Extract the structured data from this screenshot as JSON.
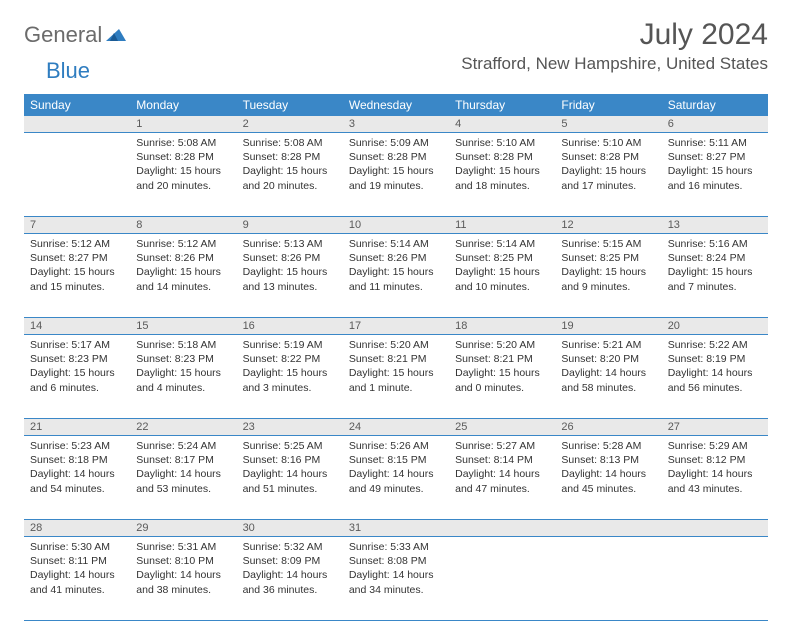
{
  "logo": {
    "general": "General",
    "blue": "Blue"
  },
  "title": "July 2024",
  "location": "Strafford, New Hampshire, United States",
  "day_headers": [
    "Sunday",
    "Monday",
    "Tuesday",
    "Wednesday",
    "Thursday",
    "Friday",
    "Saturday"
  ],
  "colors": {
    "header_bg": "#3a87c7",
    "header_text": "#ffffff",
    "row_border": "#3a87c7",
    "daynum_bg": "#e9e9e9",
    "daynum_text": "#5a5a5a",
    "body_text": "#333333",
    "title_text": "#555555",
    "logo_gray": "#6b6b6b",
    "logo_blue": "#2f7dc0"
  },
  "weeks": [
    [
      null,
      {
        "n": "1",
        "sr": "Sunrise: 5:08 AM",
        "ss": "Sunset: 8:28 PM",
        "dl1": "Daylight: 15 hours",
        "dl2": "and 20 minutes."
      },
      {
        "n": "2",
        "sr": "Sunrise: 5:08 AM",
        "ss": "Sunset: 8:28 PM",
        "dl1": "Daylight: 15 hours",
        "dl2": "and 20 minutes."
      },
      {
        "n": "3",
        "sr": "Sunrise: 5:09 AM",
        "ss": "Sunset: 8:28 PM",
        "dl1": "Daylight: 15 hours",
        "dl2": "and 19 minutes."
      },
      {
        "n": "4",
        "sr": "Sunrise: 5:10 AM",
        "ss": "Sunset: 8:28 PM",
        "dl1": "Daylight: 15 hours",
        "dl2": "and 18 minutes."
      },
      {
        "n": "5",
        "sr": "Sunrise: 5:10 AM",
        "ss": "Sunset: 8:28 PM",
        "dl1": "Daylight: 15 hours",
        "dl2": "and 17 minutes."
      },
      {
        "n": "6",
        "sr": "Sunrise: 5:11 AM",
        "ss": "Sunset: 8:27 PM",
        "dl1": "Daylight: 15 hours",
        "dl2": "and 16 minutes."
      }
    ],
    [
      {
        "n": "7",
        "sr": "Sunrise: 5:12 AM",
        "ss": "Sunset: 8:27 PM",
        "dl1": "Daylight: 15 hours",
        "dl2": "and 15 minutes."
      },
      {
        "n": "8",
        "sr": "Sunrise: 5:12 AM",
        "ss": "Sunset: 8:26 PM",
        "dl1": "Daylight: 15 hours",
        "dl2": "and 14 minutes."
      },
      {
        "n": "9",
        "sr": "Sunrise: 5:13 AM",
        "ss": "Sunset: 8:26 PM",
        "dl1": "Daylight: 15 hours",
        "dl2": "and 13 minutes."
      },
      {
        "n": "10",
        "sr": "Sunrise: 5:14 AM",
        "ss": "Sunset: 8:26 PM",
        "dl1": "Daylight: 15 hours",
        "dl2": "and 11 minutes."
      },
      {
        "n": "11",
        "sr": "Sunrise: 5:14 AM",
        "ss": "Sunset: 8:25 PM",
        "dl1": "Daylight: 15 hours",
        "dl2": "and 10 minutes."
      },
      {
        "n": "12",
        "sr": "Sunrise: 5:15 AM",
        "ss": "Sunset: 8:25 PM",
        "dl1": "Daylight: 15 hours",
        "dl2": "and 9 minutes."
      },
      {
        "n": "13",
        "sr": "Sunrise: 5:16 AM",
        "ss": "Sunset: 8:24 PM",
        "dl1": "Daylight: 15 hours",
        "dl2": "and 7 minutes."
      }
    ],
    [
      {
        "n": "14",
        "sr": "Sunrise: 5:17 AM",
        "ss": "Sunset: 8:23 PM",
        "dl1": "Daylight: 15 hours",
        "dl2": "and 6 minutes."
      },
      {
        "n": "15",
        "sr": "Sunrise: 5:18 AM",
        "ss": "Sunset: 8:23 PM",
        "dl1": "Daylight: 15 hours",
        "dl2": "and 4 minutes."
      },
      {
        "n": "16",
        "sr": "Sunrise: 5:19 AM",
        "ss": "Sunset: 8:22 PM",
        "dl1": "Daylight: 15 hours",
        "dl2": "and 3 minutes."
      },
      {
        "n": "17",
        "sr": "Sunrise: 5:20 AM",
        "ss": "Sunset: 8:21 PM",
        "dl1": "Daylight: 15 hours",
        "dl2": "and 1 minute."
      },
      {
        "n": "18",
        "sr": "Sunrise: 5:20 AM",
        "ss": "Sunset: 8:21 PM",
        "dl1": "Daylight: 15 hours",
        "dl2": "and 0 minutes."
      },
      {
        "n": "19",
        "sr": "Sunrise: 5:21 AM",
        "ss": "Sunset: 8:20 PM",
        "dl1": "Daylight: 14 hours",
        "dl2": "and 58 minutes."
      },
      {
        "n": "20",
        "sr": "Sunrise: 5:22 AM",
        "ss": "Sunset: 8:19 PM",
        "dl1": "Daylight: 14 hours",
        "dl2": "and 56 minutes."
      }
    ],
    [
      {
        "n": "21",
        "sr": "Sunrise: 5:23 AM",
        "ss": "Sunset: 8:18 PM",
        "dl1": "Daylight: 14 hours",
        "dl2": "and 54 minutes."
      },
      {
        "n": "22",
        "sr": "Sunrise: 5:24 AM",
        "ss": "Sunset: 8:17 PM",
        "dl1": "Daylight: 14 hours",
        "dl2": "and 53 minutes."
      },
      {
        "n": "23",
        "sr": "Sunrise: 5:25 AM",
        "ss": "Sunset: 8:16 PM",
        "dl1": "Daylight: 14 hours",
        "dl2": "and 51 minutes."
      },
      {
        "n": "24",
        "sr": "Sunrise: 5:26 AM",
        "ss": "Sunset: 8:15 PM",
        "dl1": "Daylight: 14 hours",
        "dl2": "and 49 minutes."
      },
      {
        "n": "25",
        "sr": "Sunrise: 5:27 AM",
        "ss": "Sunset: 8:14 PM",
        "dl1": "Daylight: 14 hours",
        "dl2": "and 47 minutes."
      },
      {
        "n": "26",
        "sr": "Sunrise: 5:28 AM",
        "ss": "Sunset: 8:13 PM",
        "dl1": "Daylight: 14 hours",
        "dl2": "and 45 minutes."
      },
      {
        "n": "27",
        "sr": "Sunrise: 5:29 AM",
        "ss": "Sunset: 8:12 PM",
        "dl1": "Daylight: 14 hours",
        "dl2": "and 43 minutes."
      }
    ],
    [
      {
        "n": "28",
        "sr": "Sunrise: 5:30 AM",
        "ss": "Sunset: 8:11 PM",
        "dl1": "Daylight: 14 hours",
        "dl2": "and 41 minutes."
      },
      {
        "n": "29",
        "sr": "Sunrise: 5:31 AM",
        "ss": "Sunset: 8:10 PM",
        "dl1": "Daylight: 14 hours",
        "dl2": "and 38 minutes."
      },
      {
        "n": "30",
        "sr": "Sunrise: 5:32 AM",
        "ss": "Sunset: 8:09 PM",
        "dl1": "Daylight: 14 hours",
        "dl2": "and 36 minutes."
      },
      {
        "n": "31",
        "sr": "Sunrise: 5:33 AM",
        "ss": "Sunset: 8:08 PM",
        "dl1": "Daylight: 14 hours",
        "dl2": "and 34 minutes."
      },
      null,
      null,
      null
    ]
  ]
}
